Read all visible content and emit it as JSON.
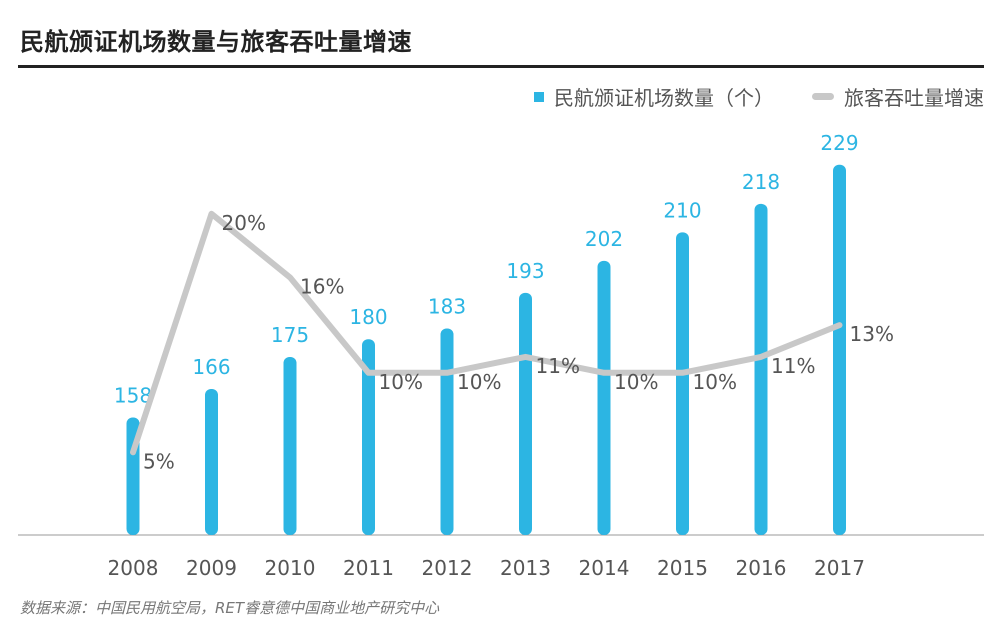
{
  "title": "民航颁证机场数量与旅客吞吐量增速",
  "source": "数据来源：中国民用航空局，RET睿意德中国商业地产研究中心",
  "colors": {
    "bar": "#2cb5e3",
    "line": "#c8c8c8",
    "bar_label": "#2cb5e3",
    "line_label": "#555555",
    "axis": "#999999"
  },
  "chart_data": {
    "type": "bar+line",
    "categories": [
      "2008",
      "2009",
      "2010",
      "2011",
      "2012",
      "2013",
      "2014",
      "2015",
      "2016",
      "2017"
    ],
    "series": [
      {
        "name": "民航颁证机场数量（个）",
        "type": "bar",
        "values": [
          158,
          166,
          175,
          180,
          183,
          193,
          202,
          210,
          218,
          229
        ]
      },
      {
        "name": "旅客吞吐量增速",
        "type": "line",
        "values": [
          5,
          20,
          16,
          10,
          10,
          11,
          10,
          10,
          11,
          13
        ],
        "labels": [
          "5%",
          "20%",
          "16%",
          "10%",
          "10%",
          "11%",
          "10%",
          "10%",
          "11%",
          "13%"
        ]
      }
    ],
    "legend_position": "top-right"
  }
}
